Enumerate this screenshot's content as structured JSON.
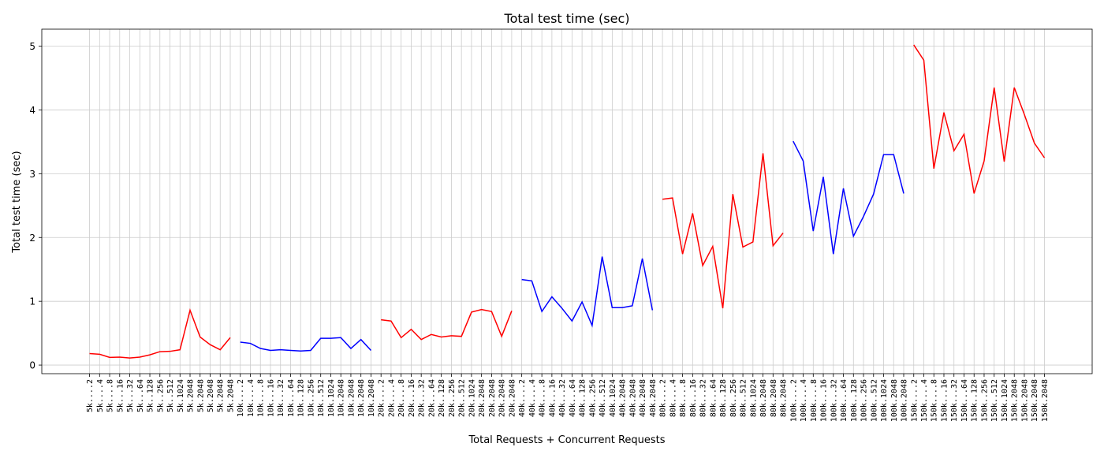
{
  "chart_data": {
    "type": "line",
    "title": "Total test time (sec)",
    "xlabel": "Total Requests + Concurrent Requests",
    "ylabel": "Total test time (sec)",
    "categories": [
      "5k....2",
      "5k....4",
      "5k....8",
      "5k...16",
      "5k...32",
      "5k...64",
      "5k..128",
      "5k..256",
      "5k..512",
      "5k.1024",
      "5k.2048",
      "5k.2048",
      "5k.2048",
      "5k.2048",
      "5k.2048",
      "10k....2",
      "10k....4",
      "10k....8",
      "10k...16",
      "10k...32",
      "10k...64",
      "10k..128",
      "10k..256",
      "10k..512",
      "10k.1024",
      "10k.2048",
      "10k.2048",
      "10k.2048",
      "10k.2048",
      "20k....2",
      "20k....4",
      "20k....8",
      "20k...16",
      "20k...32",
      "20k...64",
      "20k..128",
      "20k..256",
      "20k..512",
      "20k.1024",
      "20k.2048",
      "20k.2048",
      "20k.2048",
      "20k.2048",
      "40k....2",
      "40k....4",
      "40k....8",
      "40k...16",
      "40k...32",
      "40k...64",
      "40k..128",
      "40k..256",
      "40k..512",
      "40k.1024",
      "40k.2048",
      "40k.2048",
      "40k.2048",
      "40k.2048",
      "80k....2",
      "80k....4",
      "80k....8",
      "80k...16",
      "80k...32",
      "80k...64",
      "80k..128",
      "80k..256",
      "80k..512",
      "80k.1024",
      "80k.2048",
      "80k.2048",
      "80k.2048",
      "100k....2",
      "100k....4",
      "100k....8",
      "100k...16",
      "100k...32",
      "100k...64",
      "100k..128",
      "100k..256",
      "100k..512",
      "100k.1024",
      "100k.2048",
      "100k.2048",
      "150k....2",
      "150k....4",
      "150k....8",
      "150k...16",
      "150k...32",
      "150k...64",
      "150k..128",
      "150k..256",
      "150k..512",
      "150k.1024",
      "150k.2048",
      "150k.2048",
      "150k.2048",
      "150k.2048"
    ],
    "series": [
      {
        "color": "#ff0000",
        "values": [
          0.18,
          0.17,
          0.12,
          0.125,
          0.11,
          0.125,
          0.16,
          0.21,
          0.215,
          0.24,
          0.86,
          0.44,
          0.32,
          0.24,
          0.43,
          null,
          null,
          null,
          null,
          null,
          null,
          null,
          null,
          null,
          null,
          null,
          null,
          null,
          null,
          0.71,
          0.69,
          0.43,
          0.56,
          0.4,
          0.48,
          0.44,
          0.46,
          0.45,
          0.83,
          0.87,
          0.84,
          0.45,
          0.85,
          null,
          null,
          null,
          null,
          null,
          null,
          null,
          null,
          null,
          null,
          null,
          null,
          null,
          null,
          2.6,
          2.62,
          1.74,
          2.38,
          1.56,
          1.86,
          0.89,
          2.68,
          1.85,
          1.93,
          3.32,
          1.87,
          2.07,
          null,
          null,
          null,
          null,
          null,
          null,
          null,
          null,
          null,
          null,
          null,
          null,
          5.02,
          4.78,
          3.08,
          3.96,
          3.36,
          3.62,
          2.69,
          3.2,
          4.35,
          3.19,
          4.35,
          3.93,
          3.48,
          3.25
        ]
      },
      {
        "color": "#0000ff",
        "values": [
          null,
          null,
          null,
          null,
          null,
          null,
          null,
          null,
          null,
          null,
          null,
          null,
          null,
          null,
          null,
          0.36,
          0.34,
          0.26,
          0.23,
          0.24,
          0.23,
          0.22,
          0.23,
          0.42,
          0.42,
          0.43,
          0.26,
          0.4,
          0.23,
          null,
          null,
          null,
          null,
          null,
          null,
          null,
          null,
          null,
          null,
          null,
          null,
          null,
          null,
          1.34,
          1.32,
          0.84,
          1.07,
          0.89,
          0.69,
          0.99,
          0.62,
          1.7,
          0.9,
          0.9,
          0.93,
          1.67,
          0.86,
          null,
          null,
          null,
          null,
          null,
          null,
          null,
          null,
          null,
          null,
          null,
          null,
          null,
          3.51,
          3.2,
          2.1,
          2.95,
          1.74,
          2.77,
          2.02,
          2.33,
          2.68,
          3.3,
          3.3,
          2.69,
          null,
          null,
          null,
          null,
          null,
          null,
          null,
          null,
          null,
          null,
          null,
          null,
          null,
          null
        ]
      }
    ],
    "ylim": [
      -0.135,
      5.266
    ],
    "yticks": [
      0,
      1,
      2,
      3,
      4,
      5
    ],
    "grid": true
  }
}
